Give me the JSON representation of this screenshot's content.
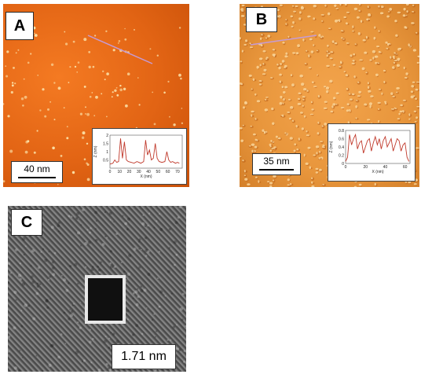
{
  "panels": {
    "a": {
      "label": "A",
      "scale_bar": "40 nm",
      "profile": {
        "ylabel": "Z (nm)",
        "xlabel": "X (nm)",
        "y_ticks": [
          "2",
          "1.5",
          "1",
          "0.5"
        ],
        "x_ticks": [
          "0",
          "10",
          "20",
          "30",
          "40",
          "50",
          "60",
          "70"
        ],
        "xlim": [
          0,
          75
        ],
        "ylim": [
          0,
          2
        ],
        "points": [
          [
            0,
            0.25
          ],
          [
            3,
            0.3
          ],
          [
            5,
            0.5
          ],
          [
            7,
            0.35
          ],
          [
            9,
            0.4
          ],
          [
            11,
            1.8
          ],
          [
            13,
            0.6
          ],
          [
            15,
            1.6
          ],
          [
            17,
            0.5
          ],
          [
            19,
            0.4
          ],
          [
            22,
            0.35
          ],
          [
            25,
            0.3
          ],
          [
            28,
            0.4
          ],
          [
            30,
            0.35
          ],
          [
            32,
            0.3
          ],
          [
            35,
            0.4
          ],
          [
            37,
            1.7
          ],
          [
            39,
            0.8
          ],
          [
            41,
            1.1
          ],
          [
            43,
            0.5
          ],
          [
            45,
            0.6
          ],
          [
            47,
            1.5
          ],
          [
            49,
            0.6
          ],
          [
            51,
            0.4
          ],
          [
            54,
            0.35
          ],
          [
            57,
            0.4
          ],
          [
            59,
            1.0
          ],
          [
            61,
            0.5
          ],
          [
            63,
            0.35
          ],
          [
            65,
            0.4
          ],
          [
            68,
            0.3
          ],
          [
            70,
            0.35
          ],
          [
            72,
            0.3
          ]
        ]
      }
    },
    "b": {
      "label": "B",
      "scale_bar": "35 nm",
      "profile": {
        "ylabel": "Z (nm)",
        "xlabel": "X (nm)",
        "y_ticks": [
          "0.8",
          "0.6",
          "0.4",
          "0.2",
          "0"
        ],
        "x_ticks": [
          "0",
          "20",
          "40",
          "60"
        ],
        "xlim": [
          0,
          65
        ],
        "ylim": [
          0,
          0.8
        ],
        "points": [
          [
            0,
            0.05
          ],
          [
            2,
            0.15
          ],
          [
            4,
            0.7
          ],
          [
            6,
            0.45
          ],
          [
            8,
            0.6
          ],
          [
            10,
            0.7
          ],
          [
            12,
            0.35
          ],
          [
            14,
            0.5
          ],
          [
            16,
            0.55
          ],
          [
            18,
            0.25
          ],
          [
            20,
            0.4
          ],
          [
            22,
            0.55
          ],
          [
            24,
            0.6
          ],
          [
            26,
            0.3
          ],
          [
            28,
            0.5
          ],
          [
            30,
            0.65
          ],
          [
            32,
            0.45
          ],
          [
            34,
            0.6
          ],
          [
            36,
            0.35
          ],
          [
            38,
            0.55
          ],
          [
            40,
            0.65
          ],
          [
            42,
            0.4
          ],
          [
            44,
            0.5
          ],
          [
            46,
            0.6
          ],
          [
            48,
            0.3
          ],
          [
            50,
            0.45
          ],
          [
            52,
            0.6
          ],
          [
            54,
            0.55
          ],
          [
            56,
            0.3
          ],
          [
            58,
            0.45
          ],
          [
            60,
            0.5
          ],
          [
            62,
            0.15
          ],
          [
            64,
            0.05
          ]
        ]
      }
    },
    "c": {
      "label": "C",
      "scale_label": "1.71 nm"
    }
  },
  "colors": {
    "afm_a_dot": "#fbe0a6",
    "afm_b_dot": "#fcd79a",
    "afm_b_shadow": "#b85c14",
    "profile_line": "#c0392b",
    "line_scan": "#c59bd6"
  }
}
